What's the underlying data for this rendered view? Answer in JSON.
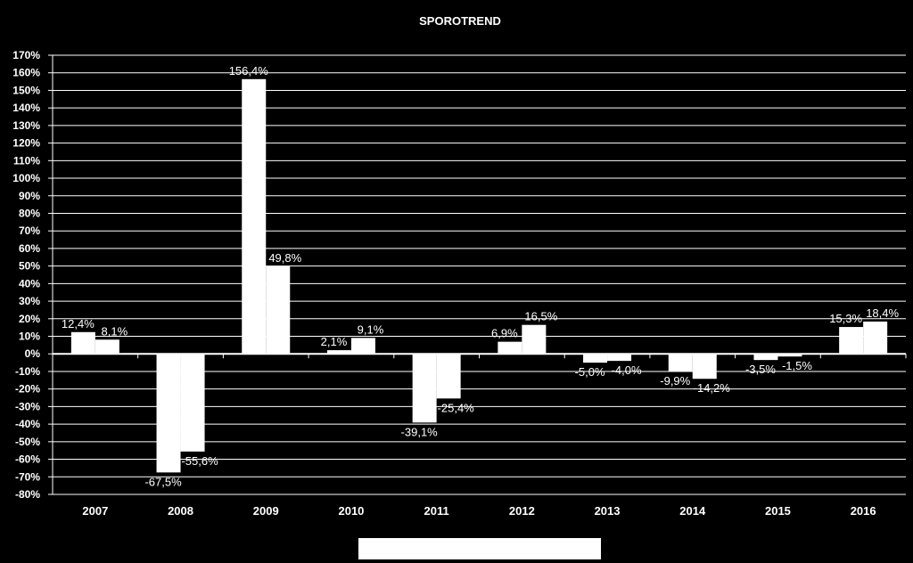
{
  "chart_data": {
    "type": "bar",
    "title": "SPOROTREND",
    "categories": [
      "2007",
      "2008",
      "2009",
      "2010",
      "2011",
      "2012",
      "2013",
      "2014",
      "2015",
      "2016"
    ],
    "series": [
      {
        "values": [
          12.4,
          -67.5,
          156.4,
          2.1,
          -39.1,
          6.9,
          -5.0,
          -9.9,
          -3.5,
          15.3
        ],
        "labels": [
          "12,4%",
          "-67,5%",
          "156,4%",
          "2,1%",
          "-39,1%",
          "6,9%",
          "-5,0%",
          "-9,9%",
          "-3,5%",
          "15,3%"
        ]
      },
      {
        "values": [
          8.1,
          -55.6,
          49.8,
          9.1,
          -25.4,
          16.5,
          -4.0,
          -14.2,
          -1.5,
          18.4
        ],
        "labels": [
          "8,1%",
          "-55,6%",
          "49,8%",
          "9,1%",
          "-25,4%",
          "16,5%",
          "-4,0%",
          "-14,2%",
          "-1,5%",
          "18,4%"
        ]
      }
    ],
    "ylim": [
      -80,
      170
    ],
    "ytick_step": 10,
    "ytick_labels": [
      "170%",
      "160%",
      "150%",
      "140%",
      "130%",
      "120%",
      "110%",
      "100%",
      "90%",
      "80%",
      "70%",
      "60%",
      "50%",
      "40%",
      "30%",
      "20%",
      "10%",
      "0%",
      "-10%",
      "-20%",
      "-30%",
      "-40%",
      "-50%",
      "-60%",
      "-70%",
      "-80%"
    ],
    "grid": true,
    "legend": "bottom",
    "colors": {
      "background": "#000000",
      "bars": "#ffffff",
      "gridlines": "#ffffff",
      "text": "#ffffff"
    }
  }
}
